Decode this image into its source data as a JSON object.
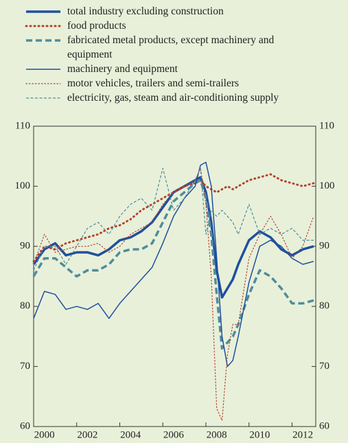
{
  "chart_data": {
    "type": "line",
    "x": [
      2000,
      2000.5,
      2001,
      2001.5,
      2002,
      2002.5,
      2003,
      2003.5,
      2004,
      2004.5,
      2005,
      2005.5,
      2006,
      2006.5,
      2007,
      2007.5,
      2007.75,
      2008,
      2008.25,
      2008.5,
      2008.75,
      2009,
      2009.25,
      2009.5,
      2010,
      2010.5,
      2011,
      2011.5,
      2012,
      2012.5,
      2013
    ],
    "series": [
      {
        "name": "total industry excluding construction",
        "color": "#1f4f9e",
        "linestyle": "solid",
        "linewidth": 3.5,
        "values": [
          87,
          89.5,
          90.5,
          88.5,
          89,
          89,
          88.5,
          89.5,
          91,
          91.5,
          92.5,
          94,
          96.5,
          99,
          100,
          101,
          101.5,
          99,
          94,
          86,
          81.5,
          83,
          84.5,
          87,
          91,
          92.5,
          91.5,
          89.5,
          88.5,
          89.5,
          90
        ]
      },
      {
        "name": "food products",
        "color": "#b3432f",
        "linestyle": "dotted",
        "linewidth": 3,
        "values": [
          87.5,
          90,
          89.5,
          90.5,
          91,
          91.5,
          92,
          93,
          93.5,
          94.5,
          96,
          97,
          98,
          99,
          100,
          100.5,
          101,
          100,
          99.5,
          99,
          99.5,
          100,
          99.5,
          100,
          101,
          101.5,
          102,
          101,
          100.5,
          100,
          100.5
        ]
      },
      {
        "name": "fabricated metal products, except machinery and equipment",
        "color": "#4f8c9e",
        "linestyle": "dashed",
        "linewidth": 3.5,
        "values": [
          85,
          88,
          88,
          86.5,
          85,
          86,
          86,
          87,
          89,
          89.5,
          89.5,
          90.5,
          94,
          97.5,
          99,
          100.5,
          101,
          98,
          92,
          82,
          73,
          74,
          75,
          77,
          82,
          86,
          85,
          83,
          80.5,
          80.5,
          81
        ]
      },
      {
        "name": "machinery and equipment",
        "color": "#1f4f9e",
        "linestyle": "solid",
        "linewidth": 1.5,
        "values": [
          78,
          82.5,
          82,
          79.5,
          80,
          79.5,
          80.5,
          78,
          80.5,
          82.5,
          84.5,
          86.5,
          90.5,
          95,
          98,
          100,
          103.5,
          104,
          100,
          88,
          75,
          70,
          71,
          75,
          84,
          90,
          91,
          90,
          88,
          87,
          87.5
        ]
      },
      {
        "name": "motor vehicles, trailers and semi-trailers",
        "color": "#b3432f",
        "linestyle": "dotted",
        "linewidth": 1.2,
        "values": [
          87,
          92,
          89,
          89.5,
          90,
          90,
          90.5,
          89,
          90,
          92,
          93,
          94,
          97,
          99,
          100,
          101,
          103,
          97,
          85,
          63,
          61,
          72,
          77,
          77,
          88,
          92,
          95,
          92,
          88,
          90,
          95
        ]
      },
      {
        "name": "electricity, gas, steam and air-conditioning supply",
        "color": "#4f8c9e",
        "linestyle": "dashed",
        "linewidth": 1.2,
        "values": [
          86,
          90,
          90,
          87,
          90,
          93,
          94,
          92,
          95,
          97,
          98,
          96,
          103,
          96,
          98,
          101,
          103,
          92,
          96,
          95,
          96,
          95,
          94,
          92,
          97,
          92,
          93,
          92,
          93,
          91,
          91
        ]
      }
    ],
    "xlim": [
      2000,
      2013.1
    ],
    "xticks": [
      2000,
      2002,
      2004,
      2006,
      2008,
      2010,
      2012
    ],
    "ylim": [
      60,
      110
    ],
    "yticks": [
      60,
      70,
      80,
      90,
      100,
      110
    ],
    "y2lim": [
      60,
      110
    ],
    "y2ticks": [
      60,
      70,
      80,
      90,
      100,
      110
    ]
  }
}
